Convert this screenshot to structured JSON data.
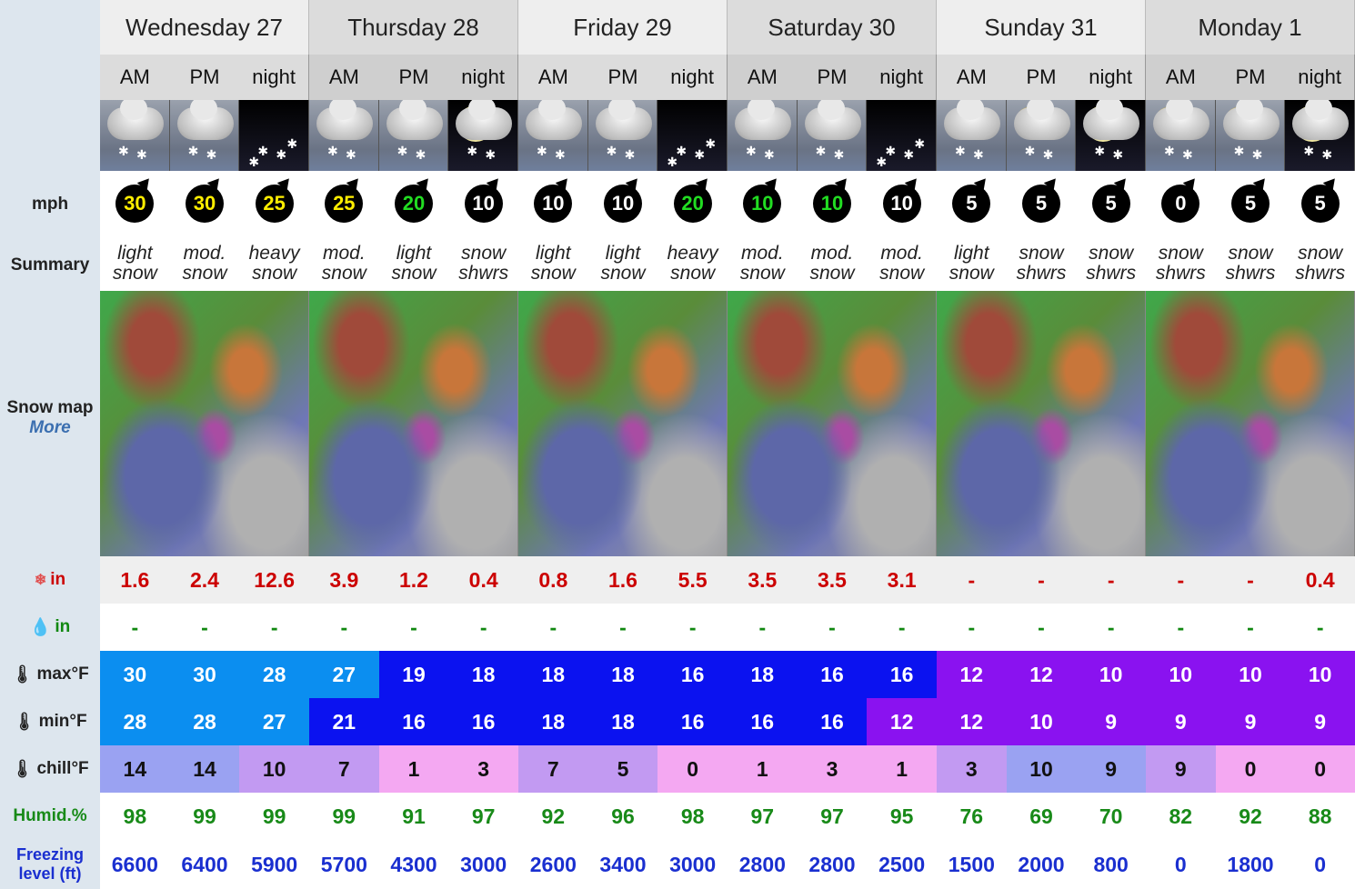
{
  "sidebar": {
    "mph": "mph",
    "summary": "Summary",
    "snow_map": "Snow map",
    "more": "More",
    "snow_in": "in",
    "rain_in": "in",
    "max": "max°F",
    "min": "min°F",
    "chill": "chill°F",
    "humid": "Humid.%",
    "freezing_line1": "Freezing",
    "freezing_line2": "level (ft)"
  },
  "days": [
    "Wednesday 27",
    "Thursday 28",
    "Friday 29",
    "Saturday 30",
    "Sunday 31",
    "Monday 1"
  ],
  "periods": [
    "AM",
    "PM",
    "night",
    "AM",
    "PM",
    "night",
    "AM",
    "PM",
    "night",
    "AM",
    "PM",
    "night",
    "AM",
    "PM",
    "night",
    "AM",
    "PM",
    "night"
  ],
  "weather_icons": [
    "cloud-snow-icon",
    "cloud-snow-icon",
    "night-snow-icon",
    "cloud-snow-icon",
    "cloud-snow-icon",
    "moon-cloud-snow-icon",
    "cloud-snow-icon",
    "cloud-snow-icon",
    "night-snow-icon",
    "cloud-snow-icon",
    "cloud-snow-icon",
    "night-snow-icon",
    "cloud-snow-icon",
    "sun-cloud-snow-icon",
    "moon-cloud-snow-icon",
    "sun-cloud-snow-icon",
    "sun-cloud-snow-icon",
    "moon-cloud-snow-icon"
  ],
  "wind": [
    "30",
    "30",
    "25",
    "25",
    "20",
    "10",
    "10",
    "10",
    "20",
    "10",
    "10",
    "10",
    "5",
    "5",
    "5",
    "0",
    "5",
    "5"
  ],
  "wind_colors": [
    "#ffee00",
    "#ffee00",
    "#ffee00",
    "#ffee00",
    "#22dd22",
    "#ffffff",
    "#ffffff",
    "#ffffff",
    "#22dd22",
    "#22dd22",
    "#22dd22",
    "#ffffff",
    "#ffffff",
    "#ffffff",
    "#ffffff",
    "#ffffff",
    "#ffffff",
    "#ffffff"
  ],
  "summary_l1": [
    "light",
    "mod.",
    "heavy",
    "mod.",
    "light",
    "snow",
    "light",
    "light",
    "heavy",
    "mod.",
    "mod.",
    "mod.",
    "light",
    "snow",
    "snow",
    "snow",
    "snow",
    "snow"
  ],
  "summary_l2": [
    "snow",
    "snow",
    "snow",
    "snow",
    "snow",
    "shwrs",
    "snow",
    "snow",
    "snow",
    "snow",
    "snow",
    "snow",
    "snow",
    "shwrs",
    "shwrs",
    "shwrs",
    "shwrs",
    "shwrs"
  ],
  "snow": [
    "1.6",
    "2.4",
    "12.6",
    "3.9",
    "1.2",
    "0.4",
    "0.8",
    "1.6",
    "5.5",
    "3.5",
    "3.5",
    "3.1",
    "-",
    "-",
    "-",
    "-",
    "-",
    "0.4"
  ],
  "rain": [
    "-",
    "-",
    "-",
    "-",
    "-",
    "-",
    "-",
    "-",
    "-",
    "-",
    "-",
    "-",
    "-",
    "-",
    "-",
    "-",
    "-",
    "-"
  ],
  "max": [
    "30",
    "30",
    "28",
    "27",
    "19",
    "18",
    "18",
    "18",
    "16",
    "18",
    "16",
    "16",
    "12",
    "12",
    "10",
    "10",
    "10",
    "10"
  ],
  "min": [
    "28",
    "28",
    "27",
    "21",
    "16",
    "16",
    "18",
    "18",
    "16",
    "16",
    "16",
    "12",
    "12",
    "10",
    "9",
    "9",
    "9",
    "9"
  ],
  "chill": [
    "14",
    "14",
    "10",
    "7",
    "1",
    "3",
    "7",
    "5",
    "0",
    "1",
    "3",
    "1",
    "3",
    "10",
    "9",
    "9",
    "0",
    "0"
  ],
  "humid": [
    "98",
    "99",
    "99",
    "99",
    "91",
    "97",
    "92",
    "96",
    "98",
    "97",
    "97",
    "95",
    "76",
    "69",
    "70",
    "82",
    "92",
    "88"
  ],
  "freezing": [
    "6600",
    "6400",
    "5900",
    "5700",
    "4300",
    "3000",
    "2600",
    "3400",
    "3000",
    "2800",
    "2800",
    "2500",
    "1500",
    "2000",
    "800",
    "0",
    "1800",
    "0"
  ],
  "colors": {
    "temp_30_27": "#0b8ef0",
    "temp_21_16": "#0b12f0",
    "temp_12_9": "#8a12f0",
    "chill_14": "#9aa2f2",
    "chill_10_7": "#c29af2",
    "chill_low": "#f4a8f2",
    "snow_text": "#cc0000",
    "rain_text": "#118811",
    "humid_text": "#188a18",
    "freezing_text": "#1a2fd0"
  }
}
